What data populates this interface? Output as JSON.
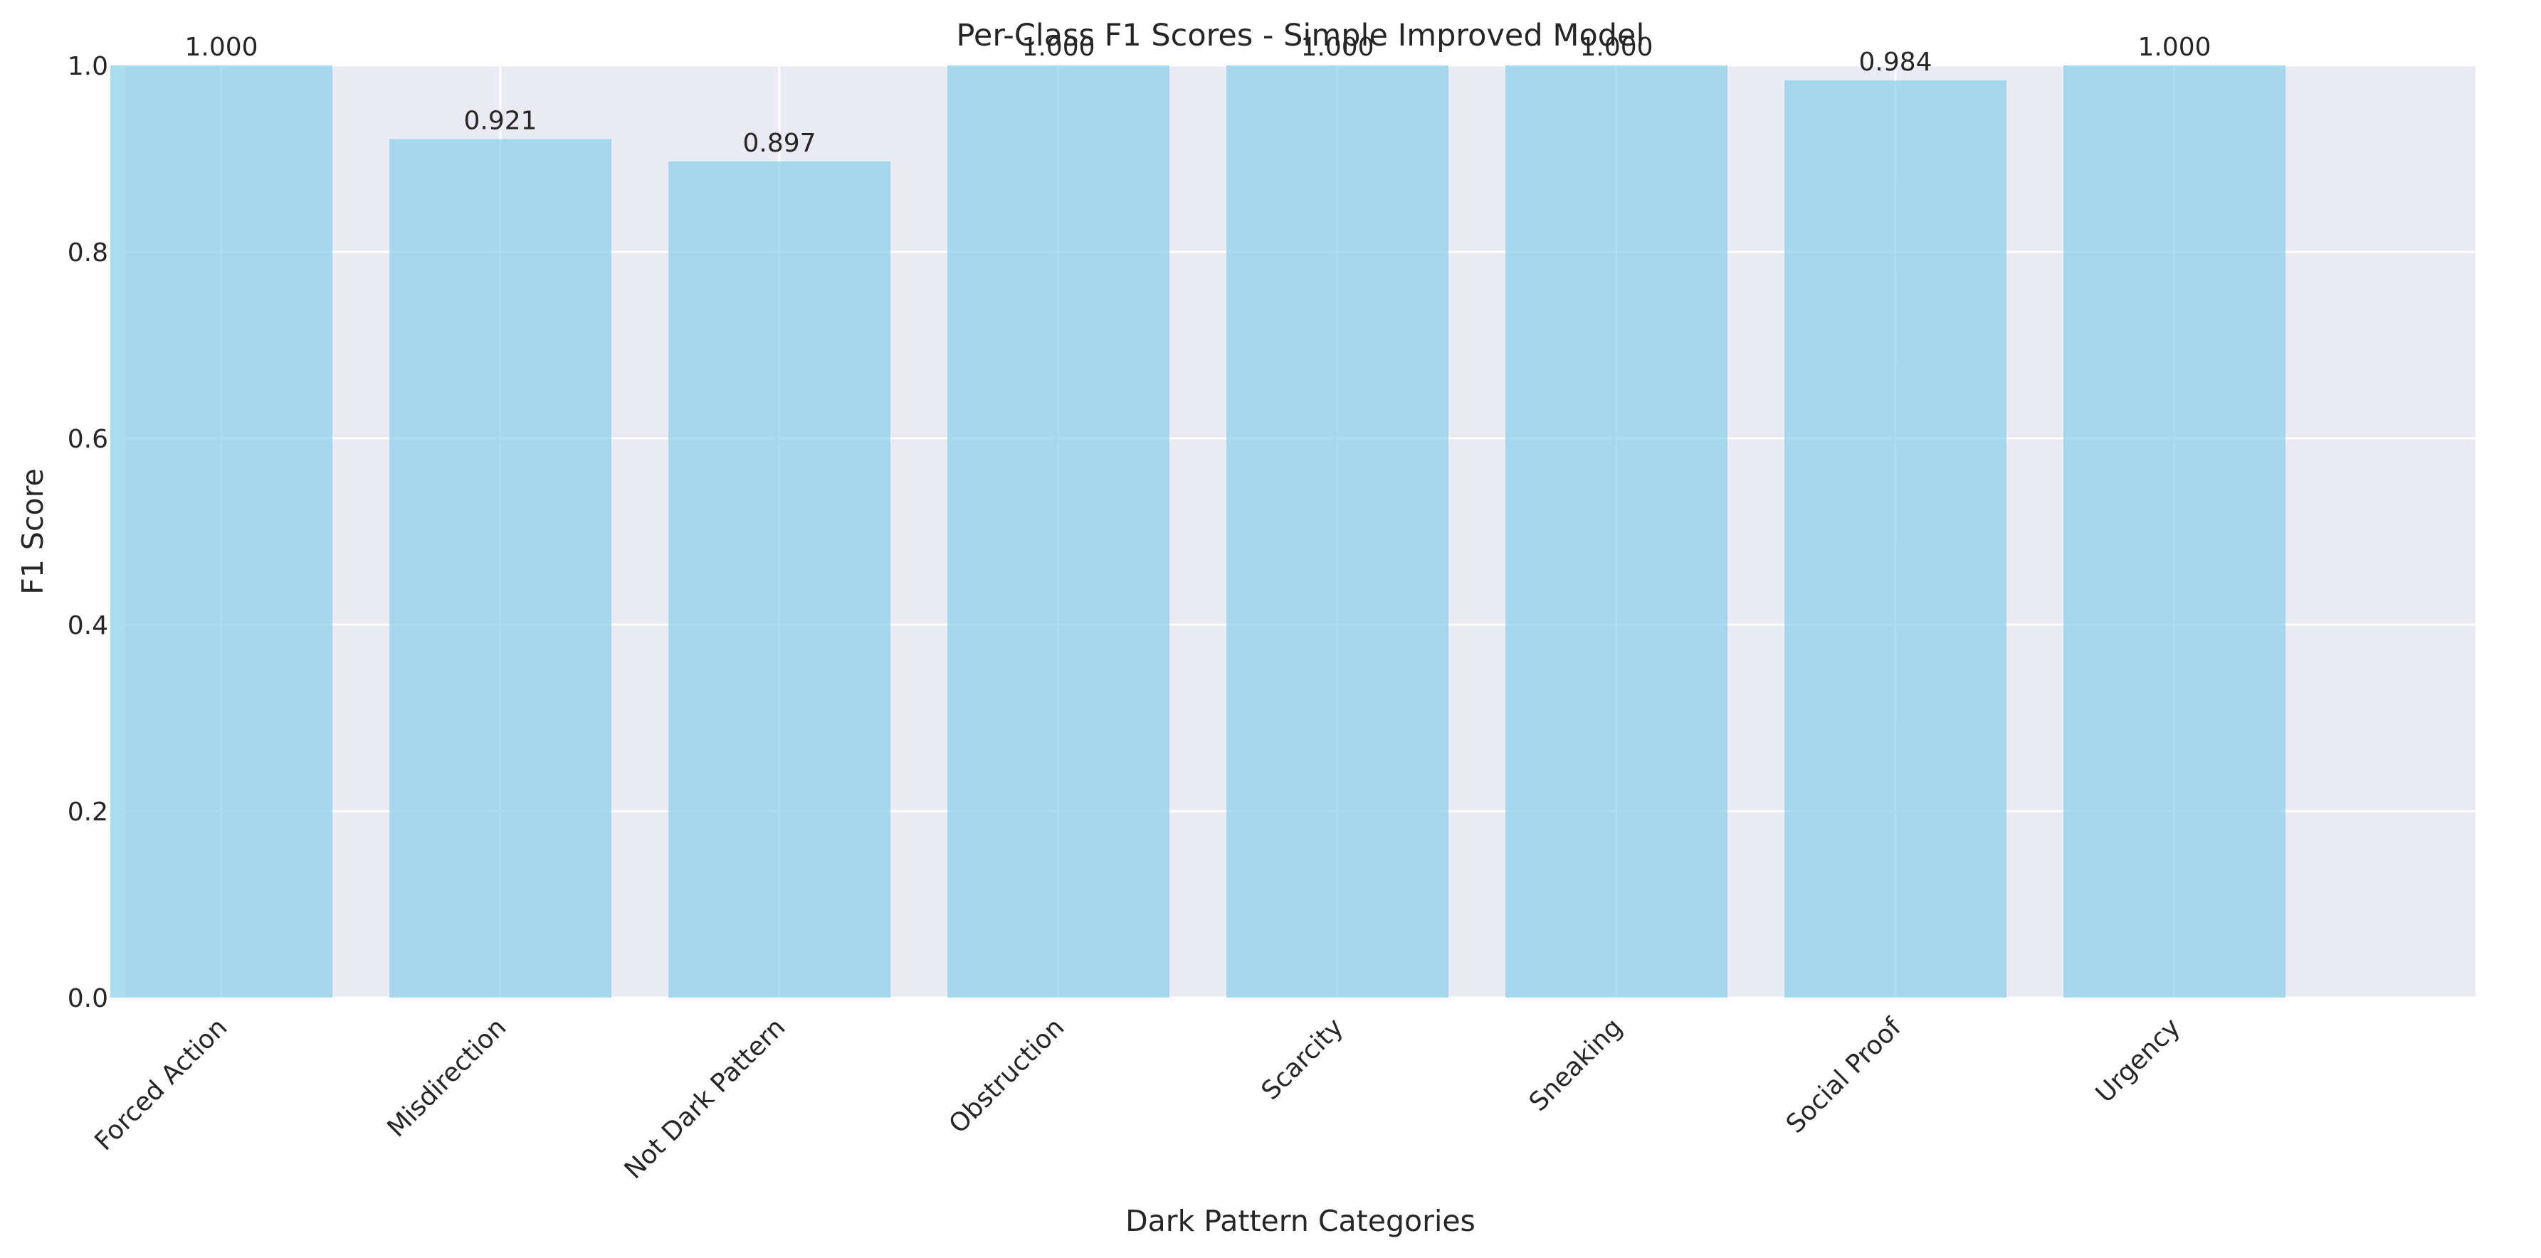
{
  "chart_data": {
    "type": "bar",
    "title": "Per-Class F1 Scores - Simple Improved Model",
    "xlabel": "Dark Pattern Categories",
    "ylabel": "F1 Score",
    "ylim": [
      0,
      1.0
    ],
    "yticks": [
      "0.0",
      "0.2",
      "0.4",
      "0.6",
      "0.8",
      "1.0"
    ],
    "grid": true,
    "categories": [
      "Forced Action",
      "Misdirection",
      "Not Dark Pattern",
      "Obstruction",
      "Scarcity",
      "Sneaking",
      "Social Proof",
      "Urgency"
    ],
    "values": [
      1.0,
      0.921,
      0.897,
      1.0,
      1.0,
      1.0,
      0.984,
      1.0
    ],
    "value_labels": [
      "1.000",
      "0.921",
      "0.897",
      "1.000",
      "1.000",
      "1.000",
      "0.984",
      "1.000"
    ],
    "bar_color": "#87CEEB",
    "plot_background": "#EAEAF2"
  }
}
